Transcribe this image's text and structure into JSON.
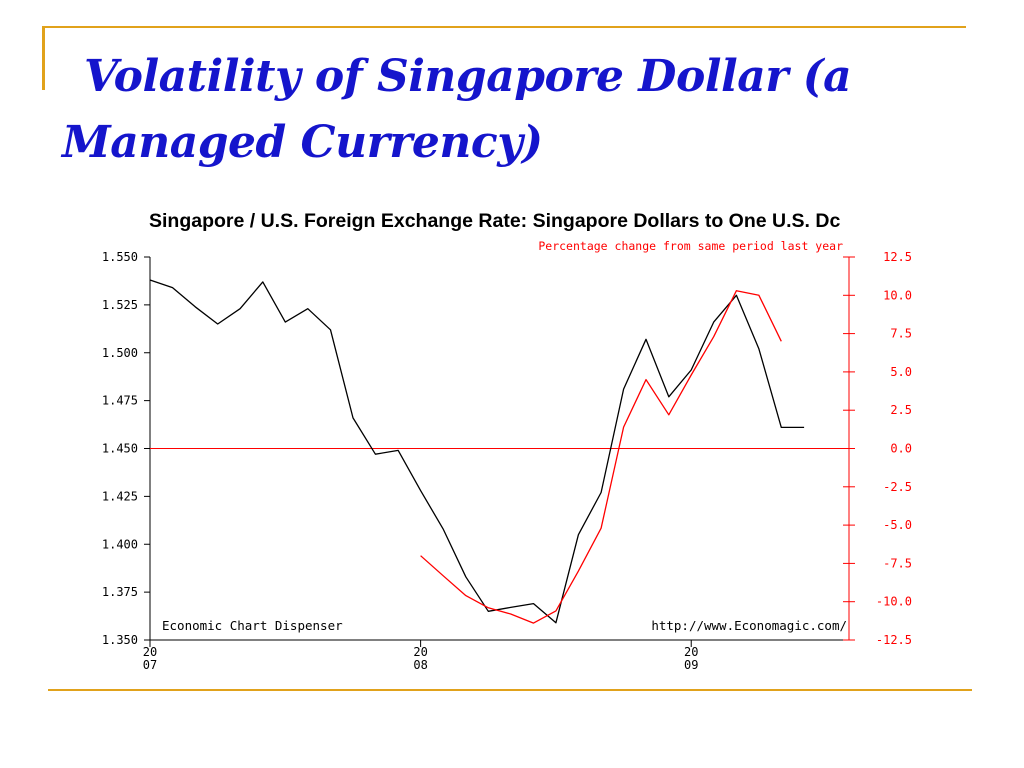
{
  "slide": {
    "title_line1": "Volatility of Singapore Dollar (a",
    "title_line2": "Managed Currency)",
    "accent_color": "#E1A21B",
    "title_color": "#1515CC"
  },
  "chart_data": {
    "type": "line",
    "title": "Singapore / U.S. Foreign Exchange Rate: Singapore Dollars to One U.S. Dc",
    "subtitle": "Percentage change from same period last year",
    "footer_left": "Economic Chart Dispenser",
    "footer_right": "http://www.Economagic.com/",
    "x_ticks": [
      {
        "year": 2007,
        "l1": "20",
        "l2": "07"
      },
      {
        "year": 2008,
        "l1": "20",
        "l2": "08"
      },
      {
        "year": 2009,
        "l1": "20",
        "l2": "09"
      }
    ],
    "x_range": [
      2007,
      2009.583
    ],
    "ylim_left": [
      1.35,
      1.55
    ],
    "ylim_right": [
      -12.5,
      12.5
    ],
    "y_left_ticks": [
      1.55,
      1.525,
      1.5,
      1.475,
      1.45,
      1.425,
      1.4,
      1.375,
      1.35
    ],
    "y_left_labels": [
      "1.550",
      "1.525",
      "1.500",
      "1.475",
      "1.450",
      "1.425",
      "1.400",
      "1.375",
      "1.350"
    ],
    "y_right_ticks": [
      12.5,
      10,
      7.5,
      5,
      2.5,
      0,
      -2.5,
      -5,
      -7.5,
      -10,
      -12.5
    ],
    "y_right_labels": [
      "12.5",
      "10.0",
      "7.5",
      "5.0",
      "2.5",
      "0.0",
      "-2.5",
      "-5.0",
      "-7.5",
      "-10.0",
      "-12.5"
    ],
    "zero_line": 0,
    "series": [
      {
        "color": "#000000",
        "axis": "left",
        "x": [
          2007.0,
          2007.083,
          2007.167,
          2007.25,
          2007.333,
          2007.417,
          2007.5,
          2007.583,
          2007.667,
          2007.75,
          2007.833,
          2007.917,
          2008.0,
          2008.083,
          2008.167,
          2008.25,
          2008.333,
          2008.417,
          2008.5,
          2008.583,
          2008.667,
          2008.75,
          2008.833,
          2008.917,
          2009.0,
          2009.083,
          2009.167,
          2009.25,
          2009.333,
          2009.417
        ],
        "values": [
          1.538,
          1.534,
          1.524,
          1.515,
          1.523,
          1.537,
          1.516,
          1.523,
          1.512,
          1.466,
          1.447,
          1.449,
          1.428,
          1.408,
          1.383,
          1.365,
          1.367,
          1.369,
          1.359,
          1.405,
          1.427,
          1.481,
          1.507,
          1.477,
          1.491,
          1.516,
          1.53,
          1.502,
          1.461,
          1.461
        ]
      },
      {
        "color": "#ff0000",
        "axis": "right",
        "x": [
          2008.0,
          2008.083,
          2008.167,
          2008.25,
          2008.333,
          2008.417,
          2008.5,
          2008.583,
          2008.667,
          2008.75,
          2008.833,
          2008.917,
          2009.0,
          2009.083,
          2009.167,
          2009.25,
          2009.333
        ],
        "values": [
          -7.0,
          -8.3,
          -9.6,
          -10.4,
          -10.8,
          -11.4,
          -10.6,
          -8.0,
          -5.2,
          1.4,
          4.5,
          2.2,
          4.8,
          7.3,
          10.3,
          10.0,
          7.0
        ]
      }
    ]
  }
}
